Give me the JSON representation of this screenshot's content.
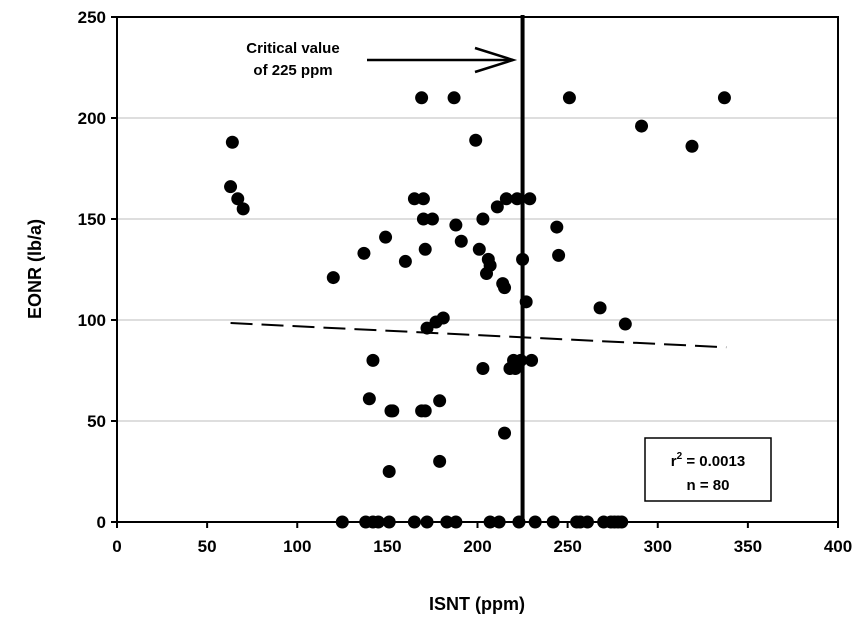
{
  "chart_data": {
    "type": "scatter",
    "xlabel": "ISNT (ppm)",
    "ylabel": "EONR (lb/a)",
    "xlim": [
      0,
      400
    ],
    "ylim": [
      0,
      250
    ],
    "x_ticks": [
      "0",
      "50",
      "100",
      "150",
      "200",
      "250",
      "300",
      "350",
      "400"
    ],
    "y_ticks": [
      "0",
      "50",
      "100",
      "150",
      "200",
      "250"
    ],
    "grid": "horizontal",
    "critical_value": 225,
    "annotation": {
      "line1": "Critical value",
      "line2": "of 225 ppm"
    },
    "stats": {
      "r2_label": "r",
      "r2_sup": "2",
      "r2_value": " = 0.0013",
      "n": "n = 80"
    },
    "trendline": {
      "x": [
        63,
        338
      ],
      "y": [
        98.5,
        86.5
      ]
    },
    "points": [
      {
        "x": 63,
        "y": 166
      },
      {
        "x": 64,
        "y": 188
      },
      {
        "x": 67,
        "y": 160
      },
      {
        "x": 70,
        "y": 155
      },
      {
        "x": 120,
        "y": 121
      },
      {
        "x": 125,
        "y": 0
      },
      {
        "x": 137,
        "y": 133
      },
      {
        "x": 138,
        "y": 0
      },
      {
        "x": 140,
        "y": 61
      },
      {
        "x": 142,
        "y": 80
      },
      {
        "x": 142,
        "y": 0
      },
      {
        "x": 145,
        "y": 0
      },
      {
        "x": 149,
        "y": 141
      },
      {
        "x": 151,
        "y": 25
      },
      {
        "x": 151,
        "y": 0
      },
      {
        "x": 152,
        "y": 55
      },
      {
        "x": 153,
        "y": 55
      },
      {
        "x": 160,
        "y": 129
      },
      {
        "x": 165,
        "y": 160
      },
      {
        "x": 165,
        "y": 0
      },
      {
        "x": 169,
        "y": 210
      },
      {
        "x": 169,
        "y": 55
      },
      {
        "x": 170,
        "y": 150
      },
      {
        "x": 170,
        "y": 160
      },
      {
        "x": 171,
        "y": 55
      },
      {
        "x": 171,
        "y": 135
      },
      {
        "x": 172,
        "y": 96
      },
      {
        "x": 172,
        "y": 0
      },
      {
        "x": 175,
        "y": 150
      },
      {
        "x": 177,
        "y": 99
      },
      {
        "x": 179,
        "y": 60
      },
      {
        "x": 179,
        "y": 30
      },
      {
        "x": 181,
        "y": 101
      },
      {
        "x": 183,
        "y": 0
      },
      {
        "x": 187,
        "y": 210
      },
      {
        "x": 188,
        "y": 147
      },
      {
        "x": 188,
        "y": 0
      },
      {
        "x": 191,
        "y": 139
      },
      {
        "x": 199,
        "y": 189
      },
      {
        "x": 201,
        "y": 135
      },
      {
        "x": 203,
        "y": 150
      },
      {
        "x": 203,
        "y": 76
      },
      {
        "x": 205,
        "y": 123
      },
      {
        "x": 206,
        "y": 130
      },
      {
        "x": 207,
        "y": 127
      },
      {
        "x": 207,
        "y": 0
      },
      {
        "x": 211,
        "y": 156
      },
      {
        "x": 212,
        "y": 0
      },
      {
        "x": 214,
        "y": 118
      },
      {
        "x": 215,
        "y": 44
      },
      {
        "x": 215,
        "y": 116
      },
      {
        "x": 216,
        "y": 160
      },
      {
        "x": 218,
        "y": 76
      },
      {
        "x": 220,
        "y": 80
      },
      {
        "x": 221,
        "y": 76
      },
      {
        "x": 222,
        "y": 160
      },
      {
        "x": 223,
        "y": 0
      },
      {
        "x": 224,
        "y": 80
      },
      {
        "x": 225,
        "y": 130
      },
      {
        "x": 227,
        "y": 109
      },
      {
        "x": 229,
        "y": 160
      },
      {
        "x": 230,
        "y": 80
      },
      {
        "x": 242,
        "y": 0
      },
      {
        "x": 244,
        "y": 146
      },
      {
        "x": 245,
        "y": 132
      },
      {
        "x": 251,
        "y": 210
      },
      {
        "x": 255,
        "y": 0
      },
      {
        "x": 257,
        "y": 0
      },
      {
        "x": 268,
        "y": 106
      },
      {
        "x": 270,
        "y": 0
      },
      {
        "x": 274,
        "y": 0
      },
      {
        "x": 276,
        "y": 0
      },
      {
        "x": 278,
        "y": 0
      },
      {
        "x": 280,
        "y": 0
      },
      {
        "x": 282,
        "y": 98
      },
      {
        "x": 291,
        "y": 196
      },
      {
        "x": 319,
        "y": 186
      },
      {
        "x": 337,
        "y": 210
      },
      {
        "x": 232,
        "y": 0
      },
      {
        "x": 261,
        "y": 0
      }
    ]
  }
}
